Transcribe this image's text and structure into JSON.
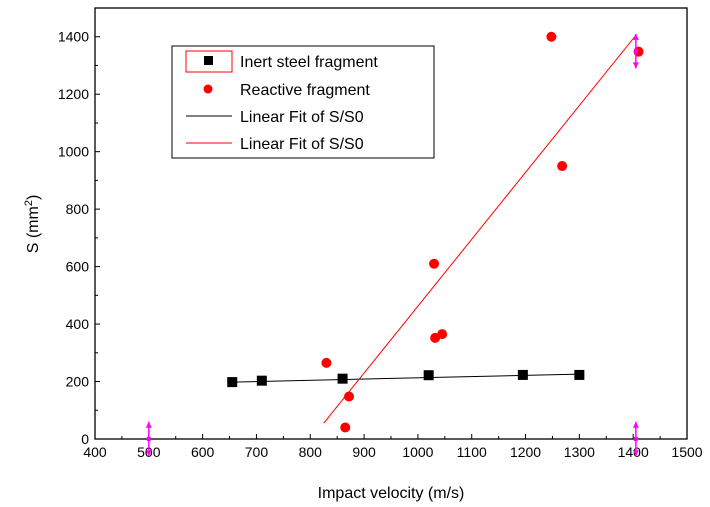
{
  "chart_data": {
    "type": "scatter",
    "xlabel": "Impact velocity (m/s)",
    "ylabel_main": "S (mm",
    "ylabel_sup": "2",
    "ylabel_close": ")",
    "xlim": [
      400,
      1500
    ],
    "ylim": [
      0,
      1500
    ],
    "xticks": [
      400,
      500,
      600,
      700,
      800,
      900,
      1000,
      1100,
      1200,
      1300,
      1400,
      1500
    ],
    "yticks": [
      0,
      200,
      400,
      600,
      800,
      1000,
      1200,
      1400
    ],
    "grid": false,
    "legend_position": "top-left",
    "series": [
      {
        "name": "Inert steel fragment",
        "marker": "square",
        "color": "#000000",
        "points": [
          [
            655,
            198
          ],
          [
            710,
            203
          ],
          [
            860,
            210
          ],
          [
            1020,
            222
          ],
          [
            1195,
            223
          ],
          [
            1300,
            223
          ]
        ]
      },
      {
        "name": "Reactive fragment",
        "marker": "circle",
        "color": "#ff0000",
        "points": [
          [
            830,
            265
          ],
          [
            865,
            40
          ],
          [
            872,
            148
          ],
          [
            1030,
            610
          ],
          [
            1032,
            352
          ],
          [
            1045,
            365
          ],
          [
            1248,
            1400
          ],
          [
            1268,
            950
          ],
          [
            1410,
            1348
          ]
        ]
      }
    ],
    "fits": [
      {
        "name": "Linear Fit of S/S0",
        "color": "#000000",
        "from": [
          655,
          198
        ],
        "to": [
          1300,
          226
        ]
      },
      {
        "name": "Linear Fit of S/S0",
        "color": "#ff0000",
        "from": [
          825,
          55
        ],
        "to": [
          1405,
          1405
        ]
      }
    ],
    "markers_magenta": [
      {
        "x": 500,
        "y_from": -60,
        "y_to": 60
      },
      {
        "x": 1405,
        "y_from": -60,
        "y_to": 60
      },
      {
        "x": 1405,
        "y_from": 1290,
        "y_to": 1410
      }
    ]
  }
}
